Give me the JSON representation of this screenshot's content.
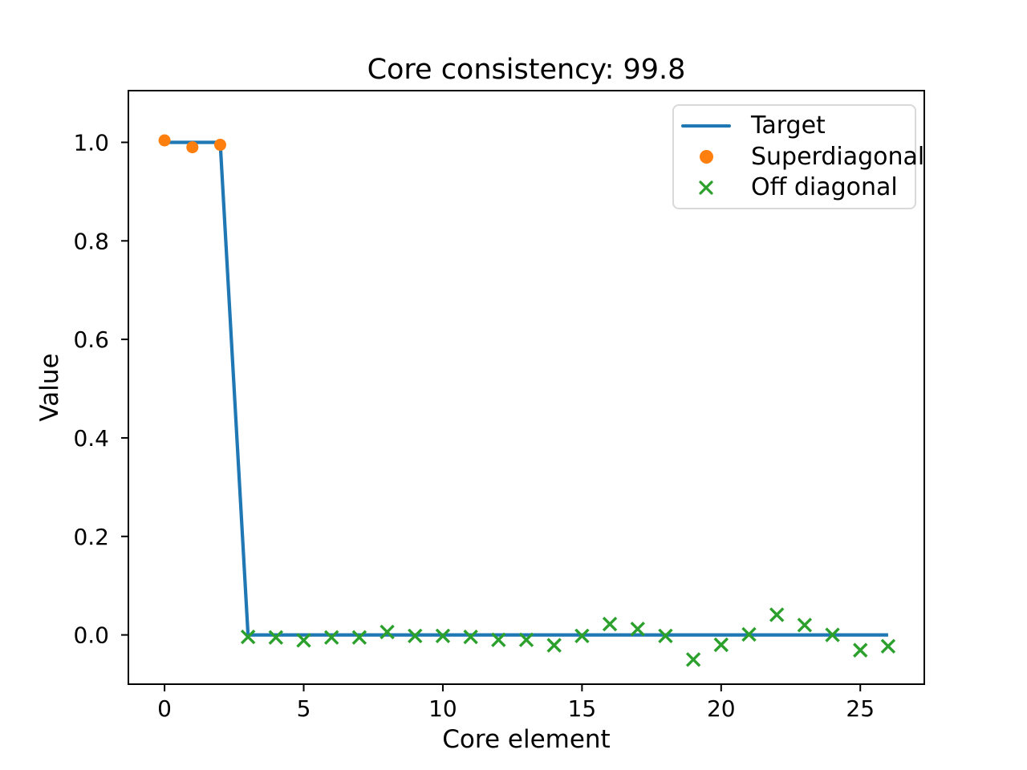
{
  "figure": {
    "background": "#ffffff"
  },
  "chart_data": {
    "type": "line",
    "title": "Core consistency: 99.8",
    "xlabel": "Core element",
    "ylabel": "Value",
    "xlim": [
      -1.3,
      27.3
    ],
    "ylim": [
      -0.1,
      1.105
    ],
    "xticks": [
      0,
      5,
      10,
      15,
      20,
      25
    ],
    "yticks": [
      0.0,
      0.2,
      0.4,
      0.6,
      0.8,
      1.0
    ],
    "ytick_labels": [
      "0.0",
      "0.2",
      "0.4",
      "0.6",
      "0.8",
      "1.0"
    ],
    "grid": false,
    "legend": {
      "position": "upper right",
      "entries": [
        "Target",
        "Superdiagonal",
        "Off diagonal"
      ]
    },
    "series": [
      {
        "name": "Target",
        "type": "line",
        "color": "#1f77b4",
        "x": [
          0,
          1,
          2,
          3,
          4,
          5,
          6,
          7,
          8,
          9,
          10,
          11,
          12,
          13,
          14,
          15,
          16,
          17,
          18,
          19,
          20,
          21,
          22,
          23,
          24,
          25,
          26
        ],
        "y": [
          1,
          1,
          1,
          0,
          0,
          0,
          0,
          0,
          0,
          0,
          0,
          0,
          0,
          0,
          0,
          0,
          0,
          0,
          0,
          0,
          0,
          0,
          0,
          0,
          0,
          0,
          0
        ]
      },
      {
        "name": "Superdiagonal",
        "type": "scatter",
        "marker": "circle",
        "color": "#ff7f0e",
        "x": [
          0,
          1,
          2
        ],
        "y": [
          1.004,
          0.99,
          0.995
        ]
      },
      {
        "name": "Off diagonal",
        "type": "scatter",
        "marker": "x",
        "color": "#2ca02c",
        "x": [
          3,
          4,
          5,
          6,
          7,
          8,
          9,
          10,
          11,
          12,
          13,
          14,
          15,
          16,
          17,
          18,
          19,
          20,
          21,
          22,
          23,
          24,
          25,
          26
        ],
        "y": [
          -0.004,
          -0.005,
          -0.011,
          -0.005,
          -0.005,
          0.006,
          -0.002,
          -0.002,
          -0.004,
          -0.01,
          -0.01,
          -0.021,
          -0.002,
          0.022,
          0.012,
          -0.002,
          -0.05,
          -0.02,
          0.001,
          0.041,
          0.02,
          0.0,
          -0.031,
          -0.023
        ]
      }
    ]
  }
}
